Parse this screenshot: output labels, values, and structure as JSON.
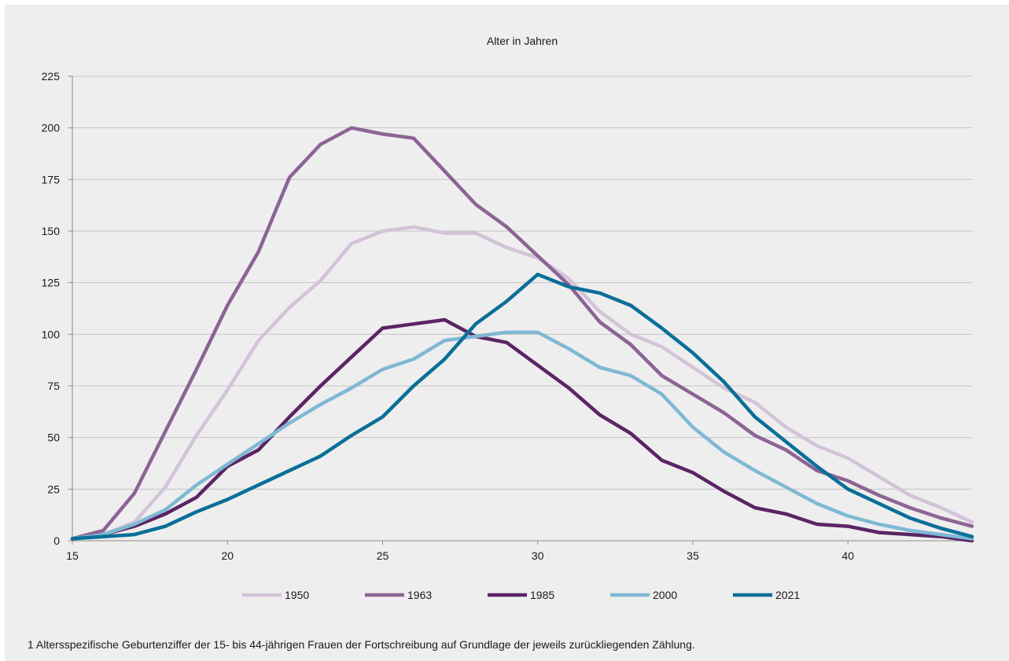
{
  "chart_data": {
    "type": "line",
    "title": "Alter in Jahren",
    "xlabel": "",
    "ylabel": "",
    "xlim": [
      15,
      44
    ],
    "ylim": [
      0,
      225
    ],
    "xticks": [
      15,
      20,
      25,
      30,
      35,
      40
    ],
    "yticks": [
      0,
      25,
      50,
      75,
      100,
      125,
      150,
      175,
      200,
      225
    ],
    "grid": "horizontal",
    "legend_position": "bottom",
    "x": [
      15,
      16,
      17,
      18,
      19,
      20,
      21,
      22,
      23,
      24,
      25,
      26,
      27,
      28,
      29,
      30,
      31,
      32,
      33,
      34,
      35,
      36,
      37,
      38,
      39,
      40,
      41,
      42,
      43,
      44
    ],
    "series": [
      {
        "name": "1950",
        "color": "#d3c3d8",
        "width": 4.5,
        "values": [
          1,
          3,
          9,
          26,
          51,
          73,
          97,
          113,
          126,
          144,
          150,
          152,
          149,
          149,
          142,
          137,
          127,
          111,
          100,
          94,
          84,
          74,
          67,
          55,
          46,
          40,
          31,
          22,
          16,
          9
        ]
      },
      {
        "name": "1963",
        "color": "#8c6494",
        "width": 4.5,
        "values": [
          1,
          5,
          23,
          53,
          83,
          114,
          140,
          176,
          192,
          200,
          197,
          195,
          179,
          163,
          152,
          138,
          124,
          106,
          95,
          80,
          71,
          62,
          51,
          44,
          34,
          29,
          22,
          16,
          11,
          7
        ]
      },
      {
        "name": "1985",
        "color": "#5b2464",
        "width": 4.5,
        "values": [
          1,
          3,
          7,
          13,
          21,
          36,
          44,
          60,
          75,
          89,
          103,
          105,
          107,
          99,
          96,
          85,
          74,
          61,
          52,
          39,
          33,
          24,
          16,
          13,
          8,
          7,
          4,
          3,
          2,
          0
        ]
      },
      {
        "name": "2000",
        "color": "#7fb8d4",
        "width": 4.5,
        "values": [
          1,
          3,
          8,
          15,
          27,
          37,
          47,
          57,
          66,
          74,
          83,
          88,
          97,
          99,
          101,
          101,
          93,
          84,
          80,
          71,
          55,
          43,
          34,
          26,
          18,
          12,
          8,
          5,
          3,
          1
        ]
      },
      {
        "name": "2021",
        "color": "#0a6f98",
        "width": 4.5,
        "values": [
          1,
          2,
          3,
          7,
          14,
          20,
          27,
          34,
          41,
          51,
          60,
          75,
          88,
          105,
          116,
          129,
          123,
          120,
          114,
          103,
          91,
          77,
          60,
          48,
          36,
          25,
          18,
          11,
          6,
          2
        ]
      }
    ]
  },
  "footnote": "1  Altersspezifische Geburtenziffer der 15- bis 44-jährigen Frauen der Fortschreibung auf Grundlage der jeweils zurückliegenden Zählung."
}
